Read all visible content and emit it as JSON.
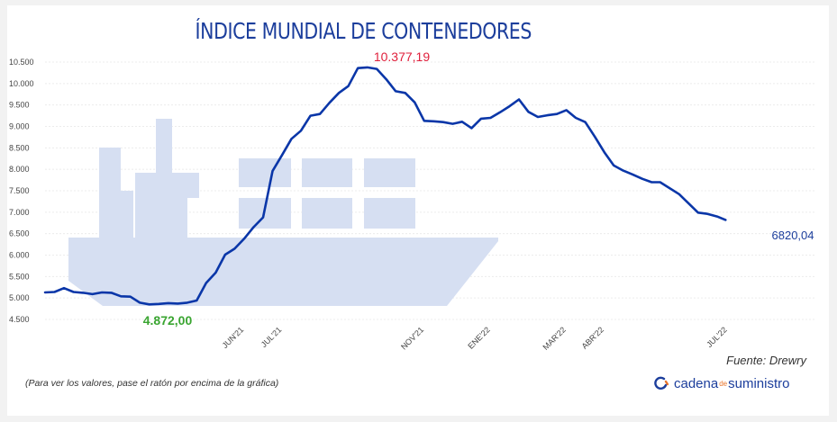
{
  "chart_data": {
    "type": "line",
    "title": "ÍNDICE MUNDIAL DE CONTENEDORES",
    "ylim": [
      4500,
      10500
    ],
    "yticks": [
      4500,
      5000,
      5500,
      6000,
      6500,
      7000,
      7500,
      8000,
      8500,
      9000,
      9500,
      10000,
      10500
    ],
    "ytick_labels": [
      "4.500",
      "5.000",
      "5.500",
      "6.000",
      "6.500",
      "7.000",
      "7.500",
      "8.000",
      "8.500",
      "9.000",
      "9.500",
      "10.000",
      "10.500"
    ],
    "xlim": [
      0,
      64
    ],
    "xticks": [
      {
        "x": 21,
        "label": "JUN'21"
      },
      {
        "x": 25,
        "label": "JUL'21"
      },
      {
        "x": 40,
        "label": "NOV'21"
      },
      {
        "x": 47,
        "label": "ENE'22"
      },
      {
        "x": 55,
        "label": "MAR'22"
      },
      {
        "x": 59,
        "label": "ABR'22"
      },
      {
        "x": 72,
        "label": "JUL'22"
      }
    ],
    "grid": true,
    "line_color": "#0a36a8",
    "annotations": [
      {
        "label": "4.872,00",
        "color": "#3aa531"
      },
      {
        "label": "10.377,19",
        "color": "#e0203c"
      },
      {
        "label": "6820,04",
        "color": "#1c3e9c"
      }
    ],
    "x": [
      0,
      1,
      2,
      3,
      4,
      5,
      6,
      7,
      8,
      9,
      10,
      11,
      12,
      13,
      14,
      15,
      16,
      17,
      18,
      19,
      20,
      21,
      22,
      23,
      24,
      25,
      26,
      27,
      28,
      29,
      30,
      31,
      32,
      33,
      34,
      35,
      36,
      37,
      38,
      39,
      40,
      41,
      42,
      43,
      44,
      45,
      46,
      47,
      48,
      49,
      50,
      51,
      52,
      53,
      54,
      55,
      56,
      57,
      58,
      59,
      60,
      61,
      62,
      63,
      64
    ],
    "values": [
      5130,
      5140,
      5230,
      5140,
      5120,
      5090,
      5130,
      5120,
      5040,
      5030,
      4890,
      4850,
      4860,
      4880,
      4870,
      4890,
      4940,
      5350,
      5590,
      6010,
      6150,
      6380,
      6650,
      6880,
      7960,
      8330,
      8710,
      8900,
      9250,
      9290,
      9550,
      9780,
      9940,
      10360,
      10377,
      10340,
      10100,
      9820,
      9780,
      9560,
      9130,
      9120,
      9100,
      9060,
      9110,
      8960,
      9180,
      9200,
      9330,
      9470,
      9630,
      9340,
      9220,
      9260,
      9290,
      9380,
      9200,
      9100,
      8760,
      8400,
      8090,
      7970,
      7880,
      7780,
      7700
    ]
  },
  "footer": {
    "source": "Fuente: Drewry",
    "note": "(Para ver los valores, pase el ratón por encima de la gráfica)",
    "brand_part1": "cadena",
    "brand_part2": "de",
    "brand_part3": "suministro",
    "logo_icon": "cadena-logo-icon"
  }
}
